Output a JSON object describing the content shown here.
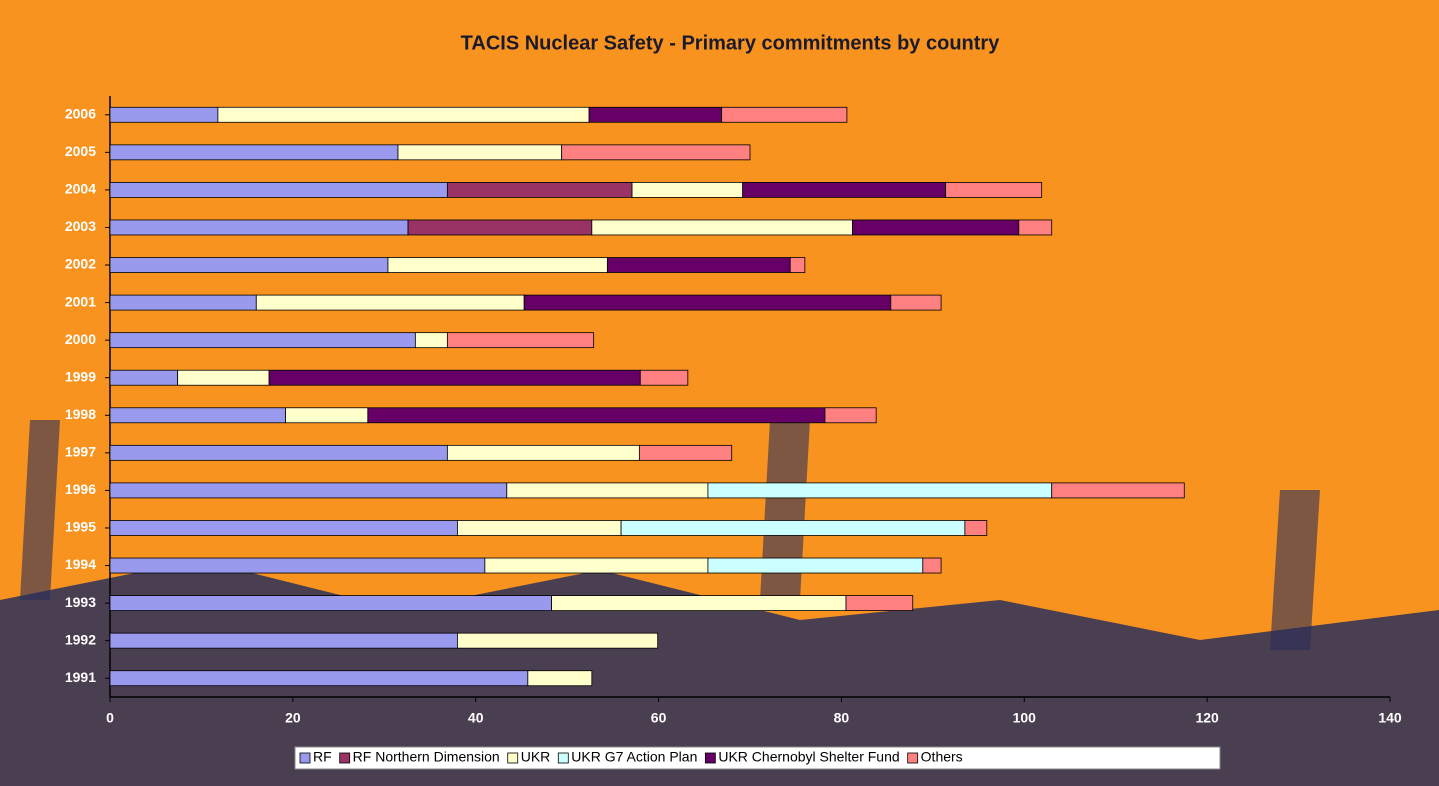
{
  "chart_data": {
    "type": "stacked-bar-horizontal",
    "title": "TACIS Nuclear Safety - Primary commitments by country",
    "categories": [
      "2006",
      "2005",
      "2004",
      "2003",
      "2002",
      "2001",
      "2000",
      "1999",
      "1998",
      "1997",
      "1996",
      "1995",
      "1994",
      "1993",
      "1992",
      "1991"
    ],
    "series": [
      {
        "name": "RF",
        "color": "#9999ee",
        "values": [
          11.8,
          31.5,
          36.9,
          32.6,
          30.4,
          16.0,
          33.4,
          7.4,
          19.2,
          36.9,
          43.4,
          38.0,
          41.0,
          48.3,
          38.0,
          45.7
        ]
      },
      {
        "name": "RF Northern Dimension",
        "color": "#993366",
        "values": [
          null,
          null,
          20.2,
          20.1,
          null,
          null,
          null,
          null,
          null,
          null,
          null,
          null,
          null,
          null,
          null,
          null
        ]
      },
      {
        "name": "UKR",
        "color": "#ffffcc",
        "values": [
          40.6,
          17.9,
          12.1,
          28.5,
          24.0,
          29.3,
          3.5,
          10.0,
          9.0,
          21.0,
          22.0,
          17.9,
          24.4,
          32.2,
          21.9,
          7.0
        ]
      },
      {
        "name": "UKR G7 Action Plan",
        "color": "#ccffff",
        "values": [
          null,
          null,
          null,
          null,
          null,
          null,
          null,
          null,
          null,
          null,
          37.6,
          37.6,
          23.5,
          null,
          null,
          null
        ]
      },
      {
        "name": "UKR Chernobyl Shelter Fund",
        "color": "#660066",
        "values": [
          14.5,
          null,
          22.2,
          18.2,
          20.0,
          40.1,
          null,
          40.6,
          50.0,
          null,
          null,
          null,
          null,
          null,
          null,
          null
        ]
      },
      {
        "name": "Others",
        "color": "#ff8080",
        "values": [
          13.7,
          20.6,
          10.5,
          3.6,
          1.6,
          5.5,
          16.0,
          5.2,
          5.6,
          10.1,
          14.5,
          2.4,
          2.0,
          7.3,
          null,
          null
        ]
      }
    ],
    "xlim": [
      0,
      140
    ],
    "xticks": [
      0,
      20,
      40,
      60,
      80,
      100,
      120,
      140
    ],
    "legend": "bottom"
  }
}
